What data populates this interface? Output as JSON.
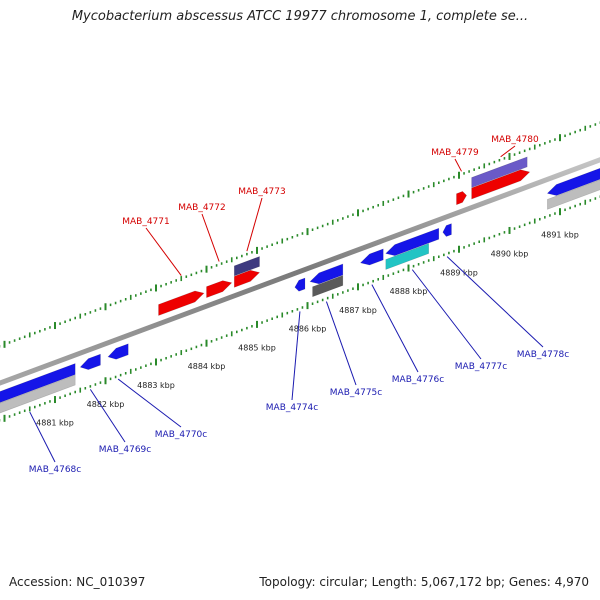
{
  "title": "Mycobacterium abscessus ATCC 19977 chromosome 1, complete se...",
  "footer": {
    "accession": "Accession: NC_010397",
    "summary": "Topology: circular; Length: 5,067,172 bp; Genes: 4,970"
  },
  "colors": {
    "forward_label": "#d40000",
    "reverse_label": "#1a1ab0",
    "forward_gene": "#ee0000",
    "reverse_gene": "#1515e8",
    "backbone": "#8a8a8a",
    "tick": "#2a8a2a"
  },
  "ruler": [
    {
      "label": "4881 kbp",
      "kbp": 4881
    },
    {
      "label": "4882 kbp",
      "kbp": 4882
    },
    {
      "label": "4883 kbp",
      "kbp": 4883
    },
    {
      "label": "4884 kbp",
      "kbp": 4884
    },
    {
      "label": "4885 kbp",
      "kbp": 4885
    },
    {
      "label": "4886 kbp",
      "kbp": 4886
    },
    {
      "label": "4887 kbp",
      "kbp": 4887
    },
    {
      "label": "4888 kbp",
      "kbp": 4888
    },
    {
      "label": "4889 kbp",
      "kbp": 4889
    },
    {
      "label": "4890 kbp",
      "kbp": 4890
    },
    {
      "label": "4891 kbp",
      "kbp": 4891
    }
  ],
  "genes": [
    {
      "name": "MAB_4768c",
      "strand": "-",
      "start_kbp": 4879.6,
      "end_kbp": 4881.4,
      "color": "#1515e8"
    },
    {
      "name": "MAB_4769c",
      "strand": "-",
      "start_kbp": 4881.5,
      "end_kbp": 4881.9,
      "color": "#1515e8"
    },
    {
      "name": "MAB_4770c",
      "strand": "-",
      "start_kbp": 4882.05,
      "end_kbp": 4882.45,
      "color": "#1515e8"
    },
    {
      "name": "MAB_4771",
      "strand": "+",
      "start_kbp": 4883.05,
      "end_kbp": 4883.95,
      "color": "#ee0000"
    },
    {
      "name": "MAB_4772",
      "strand": "+",
      "start_kbp": 4884.0,
      "end_kbp": 4884.5,
      "color": "#ee0000"
    },
    {
      "name": "MAB_4773",
      "strand": "+",
      "start_kbp": 4884.55,
      "end_kbp": 4885.05,
      "color": "#ee0000"
    },
    {
      "name": "MAB_4774c",
      "strand": "-",
      "start_kbp": 4885.75,
      "end_kbp": 4885.95,
      "color": "#1515e8"
    },
    {
      "name": "MAB_4775c",
      "strand": "-",
      "start_kbp": 4886.05,
      "end_kbp": 4886.7,
      "color": "#1515e8"
    },
    {
      "name": "MAB_4776c",
      "strand": "-",
      "start_kbp": 4887.05,
      "end_kbp": 4887.5,
      "color": "#1515e8"
    },
    {
      "name": "MAB_4777c",
      "strand": "-",
      "start_kbp": 4887.55,
      "end_kbp": 4888.6,
      "color": "#1515e8"
    },
    {
      "name": "MAB_4778c",
      "strand": "-",
      "start_kbp": 4888.68,
      "end_kbp": 4888.85,
      "color": "#1515e8"
    },
    {
      "name": "MAB_4779",
      "strand": "+",
      "start_kbp": 4888.95,
      "end_kbp": 4889.15,
      "color": "#ee0000"
    },
    {
      "name": "MAB_4780",
      "strand": "+",
      "start_kbp": 4889.25,
      "end_kbp": 4890.4,
      "color": "#ee0000"
    },
    {
      "name": "",
      "strand": "-",
      "start_kbp": 4890.75,
      "end_kbp": 4892.2,
      "color": "#1515e8"
    }
  ],
  "features": [
    {
      "kind": "grey",
      "track": "rev2",
      "start_kbp": 4879.6,
      "end_kbp": 4881.4,
      "color": "#bdbdbd"
    },
    {
      "kind": "dark",
      "track": "fwd2",
      "start_kbp": 4884.55,
      "end_kbp": 4885.05,
      "color": "#3e3a80"
    },
    {
      "kind": "dark",
      "track": "rev2",
      "start_kbp": 4886.1,
      "end_kbp": 4886.7,
      "color": "#5a5a5a"
    },
    {
      "kind": "teal",
      "track": "rev2",
      "start_kbp": 4887.55,
      "end_kbp": 4888.4,
      "color": "#22c4c4"
    },
    {
      "kind": "dark",
      "track": "fwd2",
      "start_kbp": 4889.25,
      "end_kbp": 4890.35,
      "color": "#6a5ac8"
    },
    {
      "kind": "grey",
      "track": "rev2",
      "start_kbp": 4890.75,
      "end_kbp": 4892.2,
      "color": "#bdbdbd"
    }
  ]
}
